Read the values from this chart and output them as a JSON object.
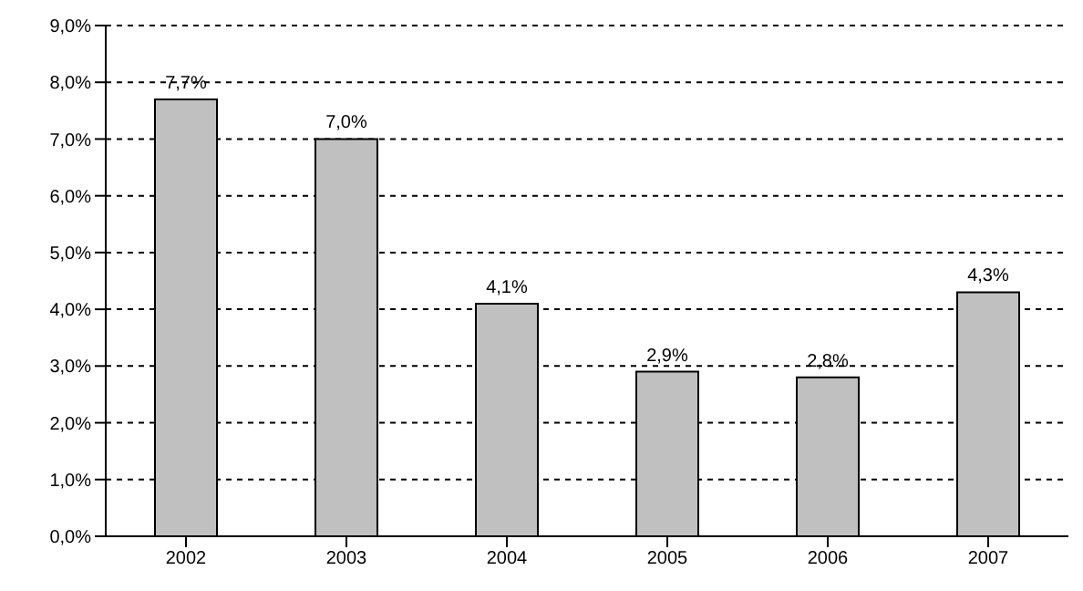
{
  "chart_data": {
    "type": "bar",
    "categories": [
      "2002",
      "2003",
      "2004",
      "2005",
      "2006",
      "2007"
    ],
    "values": [
      7.7,
      7.0,
      4.1,
      2.9,
      2.8,
      4.3
    ],
    "value_labels": [
      "7,7%",
      "7,0%",
      "4,1%",
      "2,9%",
      "2,8%",
      "4,3%"
    ],
    "color": "#c0c0c0",
    "ylim": [
      0,
      9
    ],
    "yticks": [
      {
        "value": 0,
        "label": "0,0%"
      },
      {
        "value": 1,
        "label": "1,0%"
      },
      {
        "value": 2,
        "label": "2,0%"
      },
      {
        "value": 3,
        "label": "3,0%"
      },
      {
        "value": 4,
        "label": "4,0%"
      },
      {
        "value": 5,
        "label": "5,0%"
      },
      {
        "value": 6,
        "label": "6,0%"
      },
      {
        "value": 7,
        "label": "7,0%"
      },
      {
        "value": 8,
        "label": "8,0%"
      },
      {
        "value": 9,
        "label": "9,0%"
      }
    ],
    "grid": "y"
  }
}
